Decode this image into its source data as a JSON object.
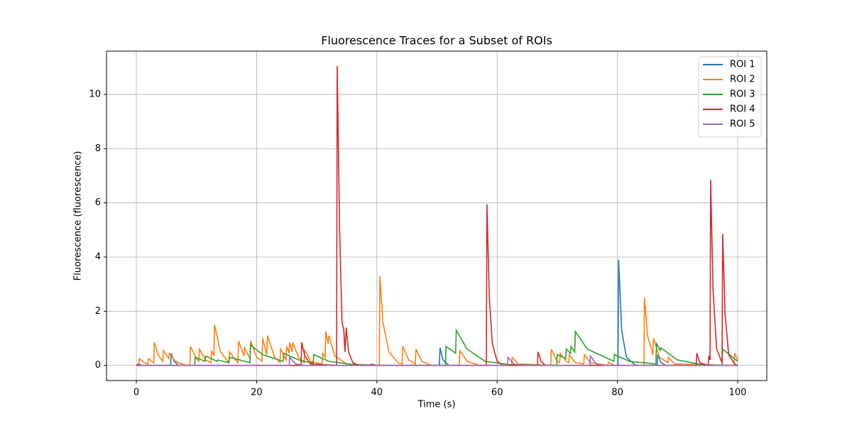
{
  "chart_data": {
    "type": "line",
    "title": "Fluorescence Traces for a Subset of ROIs",
    "xlabel": "Time (s)",
    "ylabel": "Fluorescence (fluorescence)",
    "xlim": [
      -4.96,
      104.84
    ],
    "ylim": [
      -0.56,
      11.6
    ],
    "xticks": [
      0,
      20,
      40,
      60,
      80,
      100
    ],
    "yticks": [
      0,
      2,
      4,
      6,
      8,
      10
    ],
    "grid": true,
    "legend": "upper right",
    "series": [
      {
        "name": "ROI 1",
        "color": "#1f77b4",
        "x": [
          0,
          5.7,
          5.8,
          6.3,
          7,
          50.4,
          50.5,
          51,
          52,
          80.1,
          80.2,
          80.7,
          81.5,
          83,
          86.6,
          86.7,
          87.2,
          88,
          100
        ],
        "values": [
          0,
          0,
          0.45,
          0.15,
          0,
          0,
          0.65,
          0.2,
          0,
          0,
          3.9,
          1.3,
          0.3,
          0,
          0,
          0.4,
          0.12,
          0,
          0
        ]
      },
      {
        "name": "ROI 2",
        "color": "#ff7f0e",
        "x": [
          0,
          0.4,
          0.5,
          1.5,
          1.9,
          2,
          2.9,
          3,
          3.6,
          4.4,
          4.5,
          5.4,
          5.5,
          6.5,
          8,
          8.9,
          9,
          10,
          10.4,
          10.5,
          11.5,
          12.4,
          12.5,
          12.9,
          13,
          14,
          15.4,
          15.5,
          16.5,
          16.9,
          17,
          17.9,
          18,
          18.9,
          19,
          20,
          20.9,
          21,
          21.7,
          21.8,
          23,
          23.9,
          24,
          24.9,
          25,
          25.4,
          25.5,
          25.9,
          26,
          27,
          27.9,
          28,
          29,
          30.9,
          31,
          31.4,
          31.5,
          31.9,
          32,
          33,
          35,
          40.4,
          40.5,
          41,
          42,
          43.5,
          44.2,
          44.3,
          45.3,
          46.4,
          46.5,
          47.5,
          49,
          53.7,
          53.8,
          55,
          57,
          62.4,
          62.5,
          63.5,
          68.9,
          69,
          70,
          70.4,
          70.5,
          71.5,
          71.9,
          72,
          73,
          74.4,
          74.5,
          75.5,
          78.4,
          78.5,
          79.5,
          84.4,
          84.5,
          85,
          85.9,
          86,
          87,
          88.4,
          88.5,
          89.5,
          99.4,
          99.5,
          100
        ],
        "values": [
          0,
          0,
          0.25,
          0.08,
          0.05,
          0.25,
          0.1,
          0.85,
          0.4,
          0.15,
          0.55,
          0.25,
          0.45,
          0.15,
          0.02,
          0,
          0.7,
          0.25,
          0.15,
          0.6,
          0.2,
          0.1,
          0.55,
          0.35,
          1.5,
          0.5,
          0.1,
          0.5,
          0.2,
          0.1,
          0.9,
          0.35,
          0.65,
          0.25,
          0.9,
          0.3,
          0.15,
          1.0,
          0.4,
          1.1,
          0.3,
          0.1,
          0.6,
          0.2,
          0.7,
          0.45,
          0.85,
          0.5,
          0.85,
          0.3,
          0.1,
          0.55,
          0.15,
          0.05,
          0.45,
          0.3,
          1.25,
          0.8,
          1.1,
          0.35,
          0.05,
          0,
          3.3,
          1.6,
          0.5,
          0.1,
          0.05,
          0.7,
          0.2,
          0.05,
          0.6,
          0.15,
          0,
          0,
          0.55,
          0.15,
          0,
          0,
          0.3,
          0.05,
          0,
          0.6,
          0.15,
          0.1,
          0.45,
          0.15,
          0.1,
          0.4,
          0.1,
          0.05,
          0.4,
          0.1,
          0,
          0.12,
          0,
          0,
          2.5,
          1.1,
          0.4,
          1.0,
          0.3,
          0.1,
          0.3,
          0.05,
          0,
          0.45,
          0.2
        ]
      },
      {
        "name": "ROI 3",
        "color": "#2ca02c",
        "x": [
          0,
          9.7,
          9.8,
          11.4,
          11.5,
          13.4,
          13.5,
          15.4,
          15.5,
          18.9,
          19,
          21,
          24.4,
          24.5,
          27,
          29.4,
          29.5,
          32,
          36,
          40,
          51.4,
          51.5,
          53.1,
          53.2,
          55,
          58,
          62,
          69.9,
          70,
          71.4,
          71.5,
          72.2,
          72.3,
          72.9,
          73,
          75,
          79.4,
          79.5,
          82,
          86.4,
          86.5,
          87.1,
          87.2,
          90,
          94,
          97.4,
          97.5,
          100
        ],
        "values": [
          0,
          0,
          0.3,
          0.15,
          0.35,
          0.15,
          0.2,
          0.1,
          0.3,
          0.1,
          0.75,
          0.4,
          0.15,
          0.45,
          0.2,
          0.08,
          0.4,
          0.15,
          0.03,
          0,
          0,
          0.7,
          0.45,
          1.3,
          0.6,
          0.15,
          0.03,
          0,
          0.4,
          0.25,
          0.6,
          0.45,
          0.7,
          0.5,
          1.25,
          0.6,
          0.15,
          0.4,
          0.15,
          0.05,
          0.8,
          0.55,
          0.65,
          0.2,
          0.03,
          0,
          0.6,
          0.15
        ]
      },
      {
        "name": "ROI 4",
        "color": "#d62728",
        "x": [
          0,
          27.4,
          27.5,
          28,
          29,
          33.3,
          33.4,
          33.8,
          34.2,
          34.5,
          34.7,
          34.9,
          35.3,
          36,
          37,
          58.2,
          58.3,
          58.7,
          59.2,
          60,
          61,
          66.7,
          66.8,
          67.3,
          68,
          93.1,
          93.2,
          93.7,
          95.1,
          95.2,
          95.4,
          95.5,
          95.9,
          96.5,
          97.4,
          97.5,
          97.9,
          98.5,
          99.5,
          100
        ],
        "values": [
          0,
          0,
          0.85,
          0.35,
          0.05,
          0,
          11.05,
          5,
          1.6,
          1.3,
          0.5,
          1.4,
          0.5,
          0.1,
          0,
          0,
          5.95,
          2.5,
          0.8,
          0.15,
          0,
          0,
          0.5,
          0.15,
          0,
          0,
          0.45,
          0.1,
          0,
          0.35,
          0.2,
          6.85,
          2.8,
          0.6,
          0.1,
          4.85,
          1.9,
          0.4,
          0.05,
          0
        ]
      },
      {
        "name": "ROI 5",
        "color": "#9467bd",
        "x": [
          0,
          0.2,
          1,
          25.4,
          25.5,
          26.5,
          28,
          38.9,
          39,
          40,
          61.7,
          61.8,
          62.8,
          64,
          75.4,
          75.5,
          76.5,
          78,
          100
        ],
        "values": [
          0,
          0.05,
          0,
          0,
          0.3,
          0.05,
          0,
          0,
          0.05,
          0,
          0,
          0.3,
          0.05,
          0,
          0,
          0.35,
          0.05,
          0,
          0
        ]
      }
    ]
  }
}
